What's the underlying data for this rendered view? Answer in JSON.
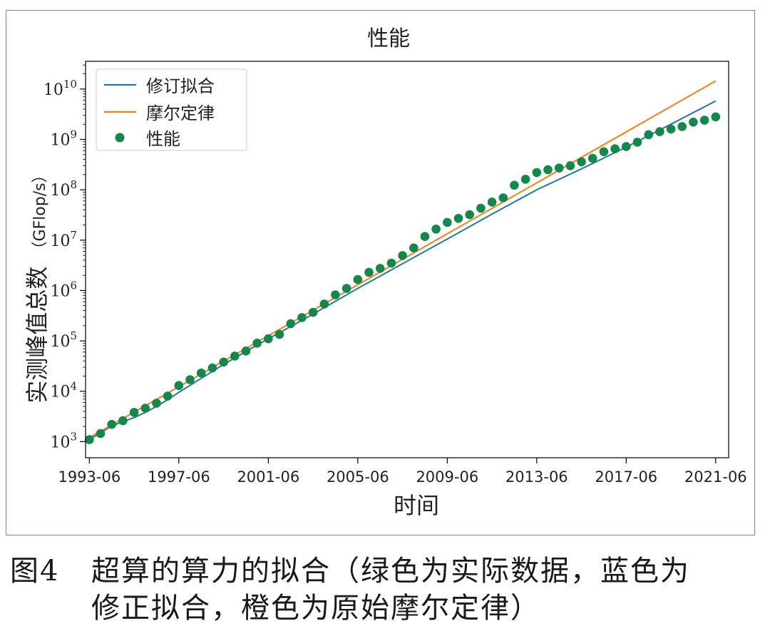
{
  "caption": {
    "figure_number": "图4",
    "line1": "超算的算力的拟合（绿色为实际数据，蓝色为",
    "line2": "修正拟合，橙色为原始摩尔定律）"
  },
  "colors": {
    "revised_fit": "#1f77b4",
    "moores_law": "#ff7f0e",
    "performance": "#12894a",
    "frame_border": "#b07a78"
  },
  "chart_data": {
    "type": "line",
    "title": "性能",
    "xlabel": "时间",
    "ylabel": "实测峰值总数",
    "ylabel_unit": "（GFlop/s）",
    "yscale": "log",
    "xlim": [
      1993.25,
      2022.0
    ],
    "ylim_log10": [
      2.68,
      10.55
    ],
    "x_ticks": [
      {
        "value": 1993.42,
        "label": "1993-06"
      },
      {
        "value": 1997.42,
        "label": "1997-06"
      },
      {
        "value": 2001.42,
        "label": "2001-06"
      },
      {
        "value": 2005.42,
        "label": "2005-06"
      },
      {
        "value": 2009.42,
        "label": "2009-06"
      },
      {
        "value": 2013.42,
        "label": "2013-06"
      },
      {
        "value": 2017.42,
        "label": "2017-06"
      },
      {
        "value": 2021.42,
        "label": "2021-06"
      }
    ],
    "y_ticks": [
      {
        "exp": 3,
        "base": "10",
        "sup": "3"
      },
      {
        "exp": 4,
        "base": "10",
        "sup": "4"
      },
      {
        "exp": 5,
        "base": "10",
        "sup": "5"
      },
      {
        "exp": 6,
        "base": "10",
        "sup": "6"
      },
      {
        "exp": 7,
        "base": "10",
        "sup": "7"
      },
      {
        "exp": 8,
        "base": "10",
        "sup": "8"
      },
      {
        "exp": 9,
        "base": "10",
        "sup": "9"
      },
      {
        "exp": 10,
        "base": "10",
        "sup": "10"
      }
    ],
    "grid": false,
    "legend_position": "top-left",
    "series": [
      {
        "name": "修订拟合",
        "kind": "line",
        "color": "#1f77b4",
        "x": [
          1993.42,
          1993.92,
          1994.42,
          1994.92,
          1995.42,
          1995.92,
          1996.42,
          1996.92,
          1997.42,
          1998.42,
          1999.42,
          2000.42,
          2001.42,
          2003.42,
          2005.42,
          2007.42,
          2009.42,
          2011.42,
          2013.42,
          2015.42,
          2017.42,
          2019.42,
          2021.42
        ],
        "y": [
          1100,
          1500,
          2050,
          2500,
          3000,
          3800,
          5000,
          6800,
          9500,
          18000,
          34000,
          62000,
          110000,
          340000,
          1100000,
          3400000,
          10500000,
          33000000,
          100000000,
          260000000,
          700000000,
          2000000000,
          5800000000
        ]
      },
      {
        "name": "摩尔定律",
        "kind": "line",
        "color": "#ff7f0e",
        "x": [
          1993.42,
          2021.42
        ],
        "y": [
          1200,
          14500000000
        ]
      },
      {
        "name": "性能",
        "kind": "scatter",
        "color": "#12894a",
        "x": [
          1993.42,
          1993.92,
          1994.42,
          1994.92,
          1995.42,
          1995.92,
          1996.42,
          1996.92,
          1997.42,
          1997.92,
          1998.42,
          1998.92,
          1999.42,
          1999.92,
          2000.42,
          2000.92,
          2001.42,
          2001.92,
          2002.42,
          2002.92,
          2003.42,
          2003.92,
          2004.42,
          2004.92,
          2005.42,
          2005.92,
          2006.42,
          2006.92,
          2007.42,
          2007.92,
          2008.42,
          2008.92,
          2009.42,
          2009.92,
          2010.42,
          2010.92,
          2011.42,
          2011.92,
          2012.42,
          2012.92,
          2013.42,
          2013.92,
          2014.42,
          2014.92,
          2015.42,
          2015.92,
          2016.42,
          2016.92,
          2017.42,
          2017.92,
          2018.42,
          2018.92,
          2019.42,
          2019.92,
          2020.42,
          2020.92,
          2021.42
        ],
        "y": [
          1100,
          1450,
          2200,
          2600,
          3800,
          4600,
          5800,
          8000,
          13000,
          17000,
          23000,
          29000,
          38000,
          50000,
          63000,
          90000,
          110000,
          135000,
          220000,
          290000,
          370000,
          540000,
          820000,
          1100000,
          1650000,
          2300000,
          2750000,
          3500000,
          4950000,
          7000000,
          11800000,
          16600000,
          22500000,
          27000000,
          32000000,
          43000000,
          57000000,
          69000000,
          123000000,
          162000000,
          220000000,
          250000000,
          270000000,
          300000000,
          360000000,
          420000000,
          570000000,
          650000000,
          720000000,
          880000000,
          1240000000,
          1420000000,
          1600000000,
          1800000000,
          2200000000,
          2400000000,
          2800000000
        ]
      }
    ]
  }
}
